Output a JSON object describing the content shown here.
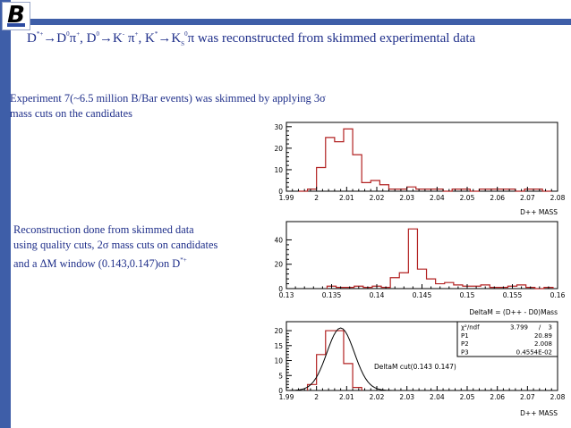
{
  "title": {
    "p1": "D",
    "p1_sup": "*+",
    "arrow1": "→",
    "p2": "D",
    "p2_sup": "0",
    "p3": "π",
    "p3_sup": "+",
    "sep1": ", ",
    "p4": "D",
    "p4_sup": "0",
    "arrow2": "→",
    "p5": "K",
    "p5_sup": "-",
    "p6": " π",
    "p6_sup": "+",
    "sep2": ", ",
    "p7": "K",
    "p7_sup": "*",
    "arrow3": "→",
    "p8": "K",
    "p8_sub": "S",
    "p8_sup": "0",
    "p9": "π",
    "rest": " was reconstructed from skimmed experimental data"
  },
  "text1": {
    "line1": "Experiment 7(~6.5 million B/Bar events) was skimmed by applying 3σ",
    "line2": "mass cuts on the candidates"
  },
  "text2": {
    "line1": "Reconstruction done from skimmed data",
    "line2": "using quality cuts, 2σ mass cuts on candidates",
    "line3": "and a ΔM window (0.143,0.147)on D",
    "line3_sup": "*+"
  },
  "chart_data": [
    {
      "type": "bar",
      "xlabel": "D++ MASS",
      "xlim": [
        1.99,
        2.08
      ],
      "ylim": [
        0,
        32
      ],
      "x_ticks": [
        "1.99",
        "2",
        "2.01",
        "2.02",
        "2.03",
        "2.04",
        "2.05",
        "2.06",
        "2.07",
        "2.08"
      ],
      "y_ticks": [
        "0",
        "10",
        "20",
        "30"
      ],
      "bin_start": 1.994,
      "bin_width": 0.003,
      "values": [
        0,
        1,
        11,
        25,
        23,
        29,
        17,
        4,
        5,
        3,
        1,
        1,
        2,
        1,
        1,
        1,
        0,
        1,
        1,
        0,
        1,
        1,
        1,
        1,
        0,
        1,
        1,
        0
      ]
    },
    {
      "type": "bar",
      "xlabel": "DeltaM = (D++ - D0)Mass",
      "xlim": [
        0.13,
        0.16
      ],
      "ylim": [
        0,
        55
      ],
      "x_ticks": [
        "0.13",
        "0.135",
        "0.14",
        "0.145",
        "0.15",
        "0.155",
        "0.16"
      ],
      "y_ticks": [
        "0",
        "20",
        "40"
      ],
      "bin_start": 0.1345,
      "bin_width": 0.001,
      "values": [
        2,
        1,
        1,
        2,
        1,
        2,
        1,
        9,
        13,
        49,
        16,
        8,
        4,
        5,
        3,
        2,
        2,
        3,
        1,
        1,
        2,
        3,
        1,
        0,
        1
      ]
    },
    {
      "type": "bar",
      "xlabel": "D++ MASS",
      "annotation": "DeltaM cut(0.143 0.147)",
      "xlim": [
        1.99,
        2.08
      ],
      "ylim": [
        0,
        23
      ],
      "x_ticks": [
        "1.99",
        "2",
        "2.01",
        "2.02",
        "2.03",
        "2.04",
        "2.05",
        "2.06",
        "2.07",
        "2.08"
      ],
      "y_ticks": [
        "0",
        "5",
        "10",
        "15",
        "20"
      ],
      "bin_start": 1.997,
      "bin_width": 0.003,
      "values": [
        2,
        12,
        20,
        20,
        9,
        1
      ],
      "fit": {
        "type": "gaussian",
        "p1": 20.89,
        "p2": 2.008,
        "p3": 0.004554
      },
      "stats": {
        "chi2_label": "χ²/ndf",
        "chi2_value": "3.799",
        "slash": "/",
        "ndf": "3",
        "p1_label": "P1",
        "p1_value": "20.89",
        "p2_label": "P2",
        "p2_value": "2.008",
        "p3_label": "P3",
        "p3_value": "0.4554E-02"
      }
    }
  ]
}
